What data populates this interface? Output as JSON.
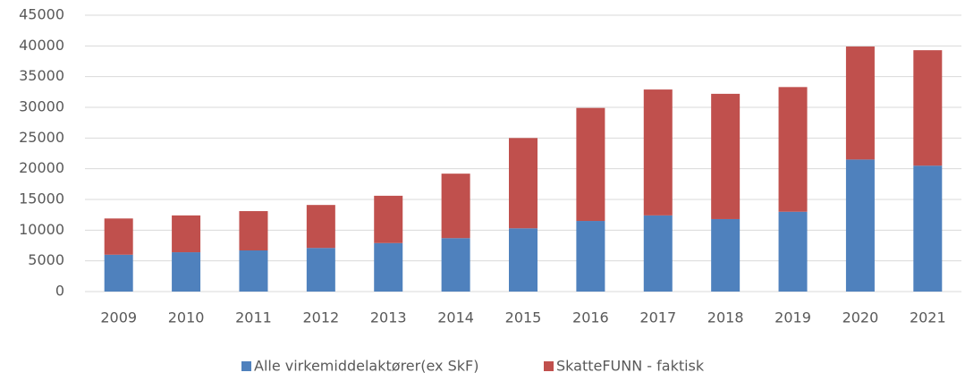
{
  "chart_data": {
    "type": "stacked_bar",
    "categories": [
      "2009",
      "2010",
      "2011",
      "2012",
      "2013",
      "2014",
      "2015",
      "2016",
      "2017",
      "2018",
      "2019",
      "2020",
      "2021"
    ],
    "series": [
      {
        "name": "Alle virkemiddelaktører(ex SkF)",
        "color": "#4f81bd",
        "values": [
          6000,
          6400,
          6700,
          7100,
          7900,
          8700,
          10300,
          11500,
          12400,
          11800,
          13000,
          21500,
          20500
        ]
      },
      {
        "name": "SkatteFUNN - faktisk",
        "color": "#c0504d",
        "values": [
          5900,
          6000,
          6400,
          7000,
          7700,
          10500,
          14700,
          18400,
          20500,
          20400,
          20300,
          18400,
          18800
        ]
      }
    ],
    "ylim": [
      0,
      45000
    ],
    "yticks": [
      0,
      5000,
      10000,
      15000,
      20000,
      25000,
      30000,
      35000,
      40000,
      45000
    ],
    "grid": true,
    "legend": "bottom"
  }
}
